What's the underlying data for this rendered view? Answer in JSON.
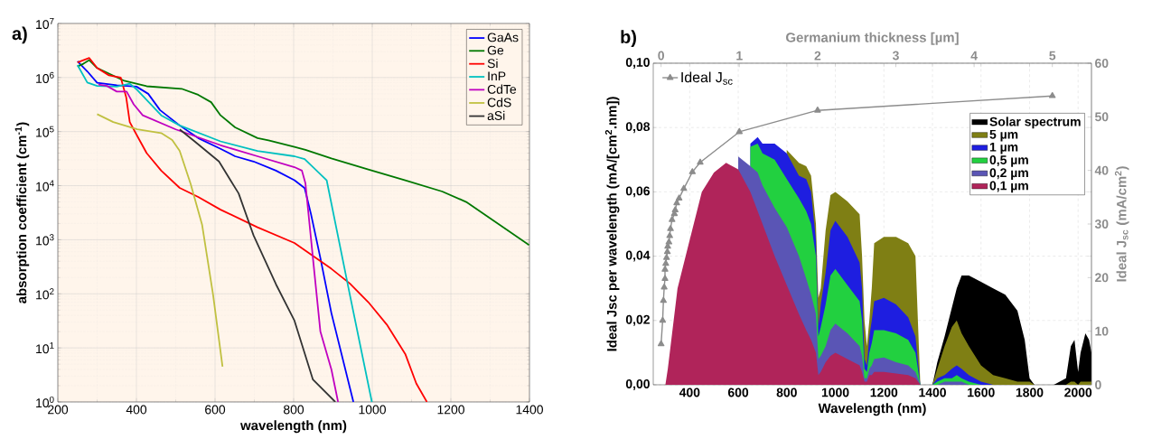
{
  "chart_data": [
    {
      "type": "line",
      "title": "a)",
      "xlabel": "wavelength (nm)",
      "ylabel": "absorption coefficient (cm$^{-1}$)",
      "log": "y",
      "grid": true,
      "legend": "top right",
      "xlim": [
        200,
        1400
      ],
      "ylim": [
        1,
        10000000
      ],
      "xticks": [
        200,
        400,
        600,
        800,
        1000,
        1200,
        1400
      ],
      "yticks": [
        {
          "value": 1,
          "label": "10$^{0}$"
        },
        {
          "value": 10,
          "label": "10$^{1}$"
        },
        {
          "value": 100,
          "label": "10$^{2}$"
        },
        {
          "value": 1000,
          "label": "10$^{3}$"
        },
        {
          "value": 10000,
          "label": "10$^{4}$"
        },
        {
          "value": 100000,
          "label": "10$^{5}$"
        },
        {
          "value": 1000000,
          "label": "10$^{6}$"
        },
        {
          "value": 10000000,
          "label": "10$^{7}$"
        }
      ],
      "series": [
        {
          "name": "GaAs",
          "color": "#0000ff",
          "x": [
            250,
            275,
            300,
            350,
            400,
            430,
            460,
            510,
            557,
            614,
            651,
            698,
            755,
            802,
            828,
            844,
            868,
            896,
            952
          ],
          "values": [
            2000000,
            1300000,
            800000,
            720000,
            680000,
            500000,
            250000,
            130000,
            76000,
            48000,
            35000,
            28000,
            19000,
            12600,
            9000,
            3000,
            460,
            44,
            1
          ]
        },
        {
          "name": "Ge",
          "color": "#007800",
          "x": [
            250,
            265,
            280,
            300,
            369,
            426,
            515,
            557,
            590,
            614,
            651,
            708,
            736,
            802,
            830,
            896,
            990,
            1084,
            1178,
            1239,
            1399
          ],
          "values": [
            1600000,
            1800000,
            2100000,
            1500000,
            870000,
            690000,
            620000,
            480000,
            350000,
            200000,
            120000,
            76000,
            69000,
            52000,
            46000,
            32000,
            20000,
            12600,
            7800,
            5000,
            800
          ]
        },
        {
          "name": "Si",
          "color": "#ff0000",
          "x": [
            250,
            280,
            300,
            330,
            360,
            374,
            383,
            402,
            426,
            463,
            510,
            557,
            614,
            708,
            802,
            896,
            943,
            990,
            1037,
            1084,
            1112,
            1139
          ],
          "values": [
            1900000,
            2300000,
            1500000,
            1100000,
            1000000,
            430000,
            150000,
            83000,
            40000,
            19000,
            9100,
            6200,
            3600,
            1700,
            870,
            290,
            155,
            70,
            27,
            7.7,
            2.2,
            1
          ]
        },
        {
          "name": "InP",
          "color": "#00c0c0",
          "x": [
            250,
            275,
            300,
            350,
            383,
            402,
            463,
            510,
            614,
            708,
            802,
            828,
            884,
            943,
            999
          ],
          "values": [
            1700000,
            810000,
            700000,
            680000,
            770000,
            590000,
            200000,
            130000,
            66000,
            44000,
            35000,
            31000,
            12600,
            96,
            1
          ]
        },
        {
          "name": "CdTe",
          "color": "#c000c0",
          "x": [
            303,
            325,
            350,
            375,
            393,
            416,
            500,
            614,
            708,
            802,
            821,
            830,
            849,
            868,
            896,
            913
          ],
          "values": [
            740000,
            700000,
            550000,
            550000,
            320000,
            200000,
            110000,
            56000,
            35000,
            22000,
            19000,
            11000,
            460,
            20,
            4,
            1
          ]
        },
        {
          "name": "CdS",
          "color": "#c0c040",
          "x": [
            300,
            341,
            402,
            463,
            491,
            510,
            538,
            567,
            595,
            619
          ],
          "values": [
            210000,
            150000,
            110000,
            94000,
            70000,
            44000,
            10700,
            1900,
            96,
            4.5
          ]
        },
        {
          "name": "aSi",
          "color": "#333333",
          "x": [
            510,
            548,
            610,
            660,
            698,
            755,
            802,
            849,
            906
          ],
          "values": [
            110000,
            66000,
            28000,
            7200,
            1200,
            150,
            32,
            2.6,
            1
          ]
        }
      ]
    },
    {
      "type": "area",
      "title": "b)",
      "xlabel": "Wavelength (nm)",
      "ylabel": "Ideal Jsc per wavelength (mA/[cm$^{2}$.nm])",
      "grid": true,
      "legend": "top right",
      "xlim": [
        250,
        2055
      ],
      "ylim": [
        0,
        0.1
      ],
      "xticks": [
        400,
        600,
        800,
        1000,
        1200,
        1400,
        1600,
        1800,
        2000
      ],
      "yticks": [
        {
          "value": 0,
          "label": "0,00"
        },
        {
          "value": 0.02,
          "label": "0,02"
        },
        {
          "value": 0.04,
          "label": "0,04"
        },
        {
          "value": 0.06,
          "label": "0,06"
        },
        {
          "value": 0.08,
          "label": "0,08"
        },
        {
          "value": 0.1,
          "label": "0,10"
        }
      ],
      "x": [
        250,
        300,
        310,
        350,
        400,
        450,
        500,
        550,
        600,
        650,
        680,
        700,
        750,
        800,
        850,
        880,
        900,
        920,
        930,
        940,
        960,
        980,
        1000,
        1050,
        1100,
        1110,
        1120,
        1130,
        1140,
        1150,
        1160,
        1200,
        1250,
        1300,
        1330,
        1350,
        1400,
        1420,
        1450,
        1480,
        1500,
        1520,
        1550,
        1600,
        1650,
        1700,
        1750,
        1780,
        1800,
        1820,
        1900,
        1950,
        1970,
        1985,
        2000,
        2010,
        2030,
        2045,
        2055
      ],
      "series": [
        {
          "name": "Solar spectrum",
          "color": "#000000",
          "values": [
            null,
            null,
            null,
            null,
            null,
            null,
            null,
            null,
            null,
            null,
            null,
            null,
            null,
            null,
            null,
            null,
            null,
            null,
            null,
            null,
            null,
            null,
            null,
            null,
            null,
            null,
            null,
            null,
            null,
            null,
            null,
            null,
            null,
            null,
            null,
            null,
            0,
            0.007,
            0.015,
            0.024,
            0.03,
            0.034,
            0.034,
            0.032,
            0.03,
            0.028,
            0.023,
            0.014,
            0.002,
            0,
            0,
            0.002,
            0.012,
            0.014,
            0.004,
            0.01,
            0.016,
            0.014,
            0.01
          ]
        },
        {
          "name": "5 µm",
          "color": "#7f7f14",
          "values": [
            null,
            null,
            null,
            null,
            null,
            null,
            null,
            null,
            null,
            null,
            null,
            null,
            null,
            0.073,
            0.069,
            0.068,
            0.065,
            0.05,
            0.027,
            0.03,
            0.048,
            0.059,
            0.06,
            0.057,
            0.053,
            0.04,
            0.02,
            0.012,
            0.02,
            0.03,
            0.044,
            0.046,
            0.046,
            0.044,
            0.04,
            0,
            0,
            0.005,
            0.012,
            0.018,
            0.02,
            0.016,
            0.012,
            0.006,
            0.003,
            0.002,
            0.001,
            0.001,
            0.001,
            0,
            0,
            0,
            0.001,
            0.001,
            0,
            0.001,
            0.001,
            0.001,
            0.001
          ]
        },
        {
          "name": "1 µm",
          "color": "#1e1ee0",
          "values": [
            null,
            null,
            null,
            null,
            null,
            null,
            null,
            null,
            null,
            0.075,
            0.077,
            0.075,
            0.075,
            0.072,
            0.065,
            0.064,
            0.06,
            0.045,
            0.018,
            0.025,
            0.035,
            0.048,
            0.051,
            0.046,
            0.038,
            0.03,
            0.008,
            0.006,
            0.015,
            0.02,
            0.026,
            0.027,
            0.025,
            0.021,
            0.015,
            0,
            0,
            0.002,
            0.003,
            0.005,
            0.006,
            0.005,
            0.003,
            0.001,
            0,
            0,
            0,
            0,
            0,
            0,
            0,
            0,
            0,
            0,
            0,
            0,
            0,
            0,
            0
          ]
        },
        {
          "name": "0,5 µm",
          "color": "#22d040",
          "values": [
            null,
            null,
            null,
            null,
            null,
            null,
            null,
            null,
            null,
            0.074,
            0.075,
            0.072,
            0.07,
            0.064,
            0.058,
            0.054,
            0.05,
            0.04,
            0.015,
            0.018,
            0.025,
            0.034,
            0.036,
            0.031,
            0.026,
            0.02,
            0.005,
            0.004,
            0.01,
            0.013,
            0.017,
            0.017,
            0.016,
            0.014,
            0.01,
            0,
            0,
            0.001,
            0.002,
            0.002,
            0.003,
            0.002,
            0.001,
            0,
            0,
            0,
            0,
            0,
            0,
            0,
            0,
            0,
            0,
            0,
            0,
            0,
            0,
            0,
            0
          ]
        },
        {
          "name": "0,2 µm",
          "color": "#5a55b5",
          "values": [
            null,
            null,
            null,
            null,
            null,
            null,
            null,
            null,
            0.071,
            0.068,
            0.066,
            0.062,
            0.055,
            0.049,
            0.04,
            0.033,
            0.028,
            0.022,
            0.008,
            0.009,
            0.012,
            0.017,
            0.019,
            0.016,
            0.012,
            0.009,
            0.002,
            0.002,
            0.005,
            0.006,
            0.008,
            0.0085,
            0.007,
            0.006,
            0.004,
            0,
            0,
            0,
            0.001,
            0.001,
            0.001,
            0.001,
            0,
            0,
            0,
            0,
            0,
            0,
            0,
            0,
            0,
            0,
            0,
            0,
            0,
            0,
            0,
            0,
            0
          ]
        },
        {
          "name": "0,1 µm",
          "color": "#b0245a",
          "values": [
            0,
            0,
            0.005,
            0.03,
            0.045,
            0.06,
            0.066,
            0.069,
            0.067,
            0.06,
            0.054,
            0.05,
            0.04,
            0.031,
            0.022,
            0.017,
            0.014,
            0.01,
            0.003,
            0.004,
            0.007,
            0.009,
            0.01,
            0.008,
            0.006,
            0.004,
            0.001,
            0.001,
            0.003,
            0.003,
            0.004,
            0.004,
            0.0035,
            0.003,
            0.002,
            0,
            0,
            0,
            0,
            0,
            0,
            0,
            0,
            0,
            0,
            0,
            0,
            0,
            0,
            0,
            0,
            0,
            0,
            0,
            0,
            0,
            0,
            0,
            0
          ]
        }
      ]
    },
    {
      "type": "line",
      "xlabel": "Germanium thickness [µm]",
      "ylabel": "Ideal J$_{sc}$ (mA/cm$^{2}$)",
      "legend": "top left",
      "xlim": [
        -0.1,
        5.5
      ],
      "xticks": [
        0,
        1,
        2,
        3,
        4,
        5
      ],
      "ylim": [
        0,
        60
      ],
      "yticks": [
        0,
        10,
        20,
        30,
        40,
        50,
        60
      ],
      "series": [
        {
          "name": "Ideal J$_{sc}$",
          "color": "#8c8c8c",
          "marker": "triangle",
          "x": [
            0,
            0.02,
            0.03,
            0.04,
            0.05,
            0.05,
            0.06,
            0.07,
            0.08,
            0.085,
            0.1,
            0.11,
            0.12,
            0.14,
            0.17,
            0.18,
            0.2,
            0.23,
            0.29,
            0.4,
            0.5,
            1,
            2,
            5
          ],
          "values": [
            7.6,
            12,
            15.7,
            18.2,
            19.8,
            21.5,
            22.6,
            23.7,
            24.8,
            25.8,
            26.6,
            27.8,
            29.1,
            30.8,
            31.9,
            32.6,
            33.9,
            34.8,
            36.6,
            39.7,
            41.5,
            47.2,
            51.2,
            53.9
          ]
        }
      ]
    }
  ]
}
